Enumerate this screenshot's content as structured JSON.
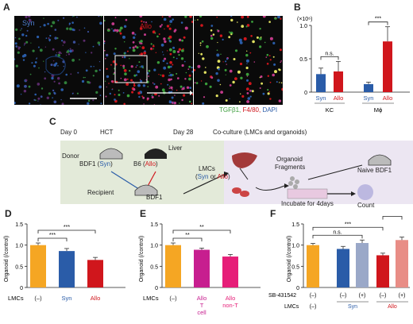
{
  "panels": {
    "A": "A",
    "B": "B",
    "C": "C",
    "D": "D",
    "E": "E",
    "F": "F"
  },
  "panel_a": {
    "syn_label": "Syn",
    "allo_label": "Allo",
    "legend_tgf": "TGFβ1,",
    "legend_f480": "F4/80,",
    "legend_dapi": "DAPI",
    "colors": {
      "syn": "#2a5ca8",
      "allo": "#d0161c",
      "tgf": "#3a9d3a",
      "f480": "#d0161c",
      "dapi": "#2a5ca8"
    }
  },
  "panel_c": {
    "day0": "Day 0",
    "hct": "HCT",
    "donor": "Donor",
    "bdf1_syn_prefix": "BDF1 (",
    "syn": "Syn",
    "close": ")",
    "b6_allo_prefix": "B6 (",
    "allo": "Allo",
    "recipient": "Recipient",
    "bdf1": "BDF1",
    "day28": "Day 28",
    "coculture": "Co-culture (LMCs and organoids)",
    "liver": "Liver",
    "lmcs": "LMCs",
    "syn_or_prefix": "(",
    "or": " or ",
    "organoid": "Organoid",
    "fragments": "Fragments",
    "naive": "Naive BDF1",
    "incubate": "Incubate for 4days",
    "count": "Count"
  },
  "chart_data": [
    {
      "id": "B",
      "type": "bar",
      "ylabel": "(×10⁶)",
      "ylim": [
        0,
        1.0
      ],
      "yticks": [
        "0",
        "0.5",
        "1.0"
      ],
      "groups": [
        "KC",
        "Mϕ"
      ],
      "categories": [
        "Syn",
        "Allo",
        "Syn",
        "Allo"
      ],
      "values": [
        0.27,
        0.31,
        0.12,
        0.76
      ],
      "errors": [
        0.09,
        0.15,
        0.03,
        0.22
      ],
      "colors": [
        "#2a5ca8",
        "#d0161c",
        "#2a5ca8",
        "#d0161c"
      ],
      "sig": [
        {
          "label": "n.s.",
          "from": 0,
          "to": 1
        },
        {
          "label": "***",
          "from": 2,
          "to": 3
        }
      ]
    },
    {
      "id": "D",
      "type": "bar",
      "ylabel": "Organoid (/control)",
      "ylim": [
        0,
        1.5
      ],
      "yticks": [
        "0",
        "0.5",
        "1.0",
        "1.5"
      ],
      "row_label": "LMCs",
      "categories": [
        "(–)",
        "Syn",
        "Allo"
      ],
      "values": [
        1.0,
        0.86,
        0.65
      ],
      "errors": [
        0.05,
        0.06,
        0.06
      ],
      "colors": [
        "#f5a623",
        "#2a5ca8",
        "#d0161c"
      ],
      "sig": [
        {
          "label": "***",
          "from": 0,
          "to": 1
        },
        {
          "label": "***",
          "from": 0,
          "to": 2
        }
      ]
    },
    {
      "id": "E",
      "type": "bar",
      "ylabel": "Organoid (/control)",
      "ylim": [
        0,
        1.5
      ],
      "yticks": [
        "0",
        "0.5",
        "1.0",
        "1.5"
      ],
      "row_label": "LMCs",
      "categories": [
        "(–)",
        "Allo T cell",
        "Allo non-T"
      ],
      "values": [
        1.0,
        0.89,
        0.73
      ],
      "errors": [
        0.05,
        0.04,
        0.05
      ],
      "colors": [
        "#f5a623",
        "#c71e8f",
        "#e61e78"
      ],
      "sig": [
        {
          "label": "**",
          "from": 0,
          "to": 1
        },
        {
          "label": "**",
          "from": 0,
          "to": 2
        }
      ]
    },
    {
      "id": "F",
      "type": "bar",
      "ylabel": "Organoid (/control)",
      "ylim": [
        0,
        1.5
      ],
      "yticks": [
        "0",
        "0.5",
        "1.0",
        "1.5"
      ],
      "row_label_1": "SB-431542",
      "row_label_2": "LMCs",
      "treatment": [
        "(–)",
        "(–)",
        "(+)",
        "(–)",
        "(+)"
      ],
      "lmcs": [
        "(–)",
        "Syn",
        "Allo"
      ],
      "values": [
        1.0,
        0.91,
        1.05,
        0.76,
        1.12
      ],
      "errors": [
        0.04,
        0.06,
        0.07,
        0.05,
        0.07
      ],
      "colors": [
        "#f5a623",
        "#2a5ca8",
        "#9aa8c8",
        "#d0161c",
        "#e88d86"
      ],
      "sig": [
        {
          "label": "n.s.",
          "from": 0,
          "to": 2
        },
        {
          "label": "***",
          "from": 0,
          "to": 3
        },
        {
          "label": "***",
          "from": 3,
          "to": 4
        }
      ]
    }
  ]
}
